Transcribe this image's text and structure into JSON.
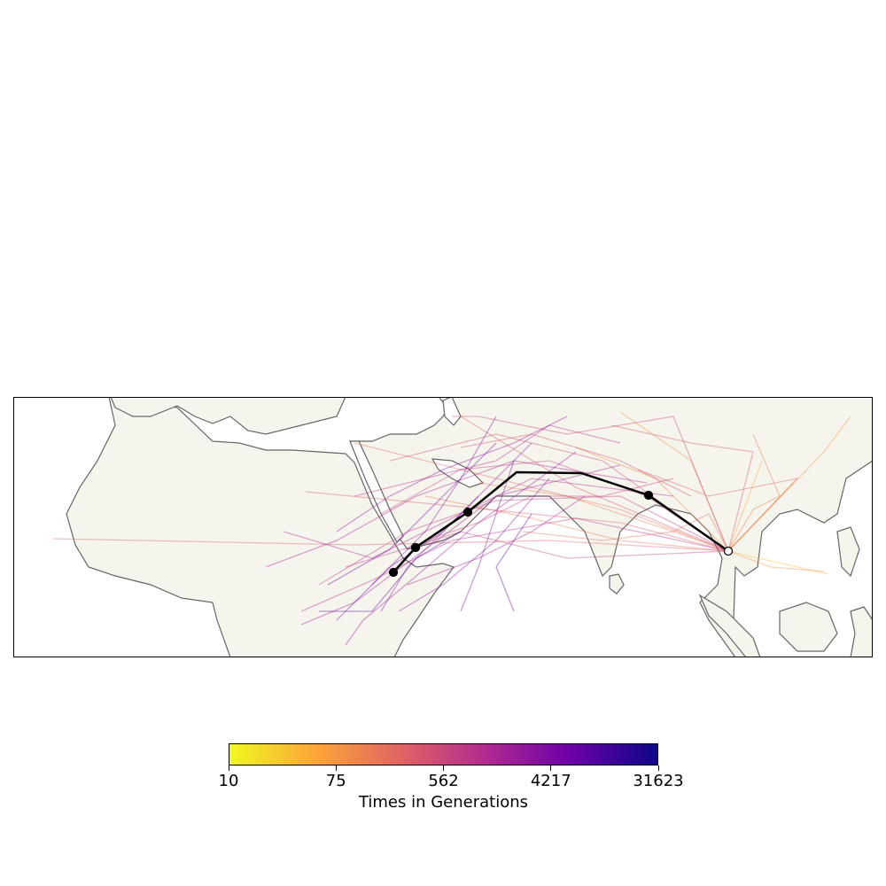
{
  "map": {
    "region": "Africa to Southeast Asia",
    "land_color": "#f5f5ed",
    "coast_color": "#666666",
    "lineage_colormap": "plasma",
    "lineages": [
      {
        "t": 0.15,
        "pts": [
          [
            822,
            622
          ],
          [
            935,
            648
          ]
        ]
      },
      {
        "t": 0.18,
        "pts": [
          [
            822,
            622
          ],
          [
            895,
            545
          ]
        ]
      },
      {
        "t": 0.22,
        "pts": [
          [
            822,
            622
          ],
          [
            860,
            520
          ]
        ]
      },
      {
        "t": 0.25,
        "pts": [
          [
            822,
            622
          ],
          [
            930,
            510
          ],
          [
            960,
            470
          ]
        ]
      },
      {
        "t": 0.28,
        "pts": [
          [
            822,
            622
          ],
          [
            780,
            520
          ],
          [
            700,
            465
          ]
        ]
      },
      {
        "t": 0.3,
        "pts": [
          [
            822,
            622
          ],
          [
            740,
            540
          ],
          [
            650,
            505
          ]
        ]
      },
      {
        "t": 0.32,
        "pts": [
          [
            822,
            622
          ],
          [
            760,
            600
          ],
          [
            640,
            560
          ],
          [
            540,
            545
          ]
        ]
      },
      {
        "t": 0.35,
        "pts": [
          [
            822,
            622
          ],
          [
            700,
            610
          ],
          [
            600,
            585
          ],
          [
            480,
            560
          ]
        ]
      },
      {
        "t": 0.38,
        "pts": [
          [
            822,
            622
          ],
          [
            700,
            575
          ],
          [
            560,
            540
          ],
          [
            400,
            500
          ]
        ]
      },
      {
        "t": 0.4,
        "pts": [
          [
            822,
            622
          ],
          [
            620,
            610
          ],
          [
            400,
            615
          ],
          [
            60,
            608
          ]
        ]
      },
      {
        "t": 0.42,
        "pts": [
          [
            822,
            622
          ],
          [
            700,
            590
          ],
          [
            500,
            570
          ],
          [
            345,
            555
          ]
        ]
      },
      {
        "t": 0.45,
        "pts": [
          [
            822,
            622
          ],
          [
            650,
            550
          ],
          [
            520,
            470
          ]
        ]
      },
      {
        "t": 0.48,
        "pts": [
          [
            822,
            622
          ],
          [
            680,
            520
          ],
          [
            560,
            490
          ],
          [
            440,
            520
          ]
        ]
      },
      {
        "t": 0.5,
        "pts": [
          [
            822,
            622
          ],
          [
            730,
            560
          ],
          [
            620,
            520
          ],
          [
            520,
            530
          ],
          [
            430,
            580
          ]
        ]
      },
      {
        "t": 0.52,
        "pts": [
          [
            822,
            622
          ],
          [
            640,
            630
          ],
          [
            520,
            600
          ],
          [
            390,
            640
          ]
        ]
      },
      {
        "t": 0.55,
        "pts": [
          [
            822,
            622
          ],
          [
            700,
            560
          ],
          [
            560,
            565
          ],
          [
            460,
            600
          ],
          [
            360,
            660
          ]
        ]
      },
      {
        "t": 0.57,
        "pts": [
          [
            822,
            622
          ],
          [
            650,
            585
          ],
          [
            510,
            610
          ],
          [
            420,
            655
          ],
          [
            340,
            690
          ]
        ]
      },
      {
        "t": 0.6,
        "pts": [
          [
            760,
            560
          ],
          [
            600,
            540
          ],
          [
            500,
            590
          ],
          [
            420,
            630
          ],
          [
            320,
            600
          ]
        ]
      },
      {
        "t": 0.62,
        "pts": [
          [
            730,
            545
          ],
          [
            580,
            520
          ],
          [
            470,
            560
          ],
          [
            380,
            610
          ],
          [
            300,
            640
          ]
        ]
      },
      {
        "t": 0.65,
        "pts": [
          [
            700,
            525
          ],
          [
            560,
            560
          ],
          [
            480,
            620
          ],
          [
            400,
            680
          ],
          [
            340,
            705
          ]
        ]
      },
      {
        "t": 0.67,
        "pts": [
          [
            650,
            510
          ],
          [
            540,
            590
          ],
          [
            470,
            650
          ],
          [
            410,
            700
          ],
          [
            390,
            728
          ]
        ]
      },
      {
        "t": 0.7,
        "pts": [
          [
            600,
            500
          ],
          [
            520,
            580
          ],
          [
            460,
            640
          ],
          [
            430,
            690
          ]
        ]
      },
      {
        "t": 0.72,
        "pts": [
          [
            620,
            540
          ],
          [
            560,
            610
          ],
          [
            500,
            660
          ],
          [
            450,
            690
          ]
        ]
      },
      {
        "t": 0.75,
        "pts": [
          [
            580,
            520
          ],
          [
            540,
            640
          ],
          [
            520,
            690
          ]
        ]
      },
      {
        "t": 0.77,
        "pts": [
          [
            560,
            500
          ],
          [
            500,
            560
          ],
          [
            440,
            620
          ],
          [
            370,
            660
          ]
        ]
      },
      {
        "t": 0.8,
        "pts": [
          [
            540,
            560
          ],
          [
            500,
            600
          ],
          [
            440,
            640
          ],
          [
            380,
            700
          ]
        ]
      },
      {
        "t": 0.82,
        "pts": [
          [
            600,
            580
          ],
          [
            560,
            640
          ],
          [
            580,
            690
          ]
        ]
      },
      {
        "t": 0.85,
        "pts": [
          [
            520,
            600
          ],
          [
            470,
            630
          ],
          [
            420,
            690
          ],
          [
            360,
            690
          ]
        ]
      },
      {
        "t": 0.5,
        "pts": [
          [
            822,
            622
          ],
          [
            760,
            470
          ],
          [
            640,
            490
          ],
          [
            540,
            470
          ],
          [
            510,
            470
          ]
        ]
      },
      {
        "t": 0.45,
        "pts": [
          [
            822,
            622
          ],
          [
            850,
            510
          ],
          [
            780,
            500
          ],
          [
            690,
            480
          ]
        ]
      },
      {
        "t": 0.4,
        "pts": [
          [
            822,
            622
          ],
          [
            900,
            540
          ],
          [
            800,
            560
          ],
          [
            720,
            530
          ]
        ]
      },
      {
        "t": 0.58,
        "pts": [
          [
            700,
            500
          ],
          [
            620,
            480
          ],
          [
            560,
            520
          ],
          [
            480,
            540
          ],
          [
            400,
            560
          ]
        ]
      },
      {
        "t": 0.63,
        "pts": [
          [
            660,
            560
          ],
          [
            600,
            600
          ],
          [
            540,
            630
          ],
          [
            460,
            660
          ]
        ]
      },
      {
        "t": 0.68,
        "pts": [
          [
            640,
            470
          ],
          [
            580,
            500
          ],
          [
            500,
            530
          ],
          [
            440,
            560
          ],
          [
            380,
            600
          ]
        ]
      },
      {
        "t": 0.73,
        "pts": [
          [
            560,
            470
          ],
          [
            520,
            540
          ],
          [
            480,
            600
          ],
          [
            420,
            660
          ]
        ]
      },
      {
        "t": 0.36,
        "pts": [
          [
            822,
            622
          ],
          [
            800,
            580
          ],
          [
            760,
            600
          ],
          [
            680,
            610
          ],
          [
            590,
            600
          ]
        ]
      },
      {
        "t": 0.33,
        "pts": [
          [
            822,
            622
          ],
          [
            850,
            575
          ],
          [
            880,
            560
          ],
          [
            850,
            490
          ]
        ]
      },
      {
        "t": 0.27,
        "pts": [
          [
            822,
            622
          ],
          [
            870,
            640
          ],
          [
            930,
            645
          ]
        ]
      },
      {
        "t": 0.47,
        "pts": [
          [
            780,
            560
          ],
          [
            700,
            520
          ],
          [
            600,
            490
          ],
          [
            520,
            505
          ]
        ]
      },
      {
        "t": 0.53,
        "pts": [
          [
            760,
            540
          ],
          [
            680,
            560
          ],
          [
            600,
            560
          ],
          [
            540,
            590
          ],
          [
            480,
            610
          ]
        ]
      }
    ],
    "main_path": [
      [
        444,
        646
      ],
      [
        469,
        618
      ],
      [
        528,
        578
      ],
      [
        583,
        533
      ],
      [
        656,
        534
      ],
      [
        732,
        559
      ],
      [
        822,
        622
      ]
    ],
    "nodes": [
      {
        "type": "internal",
        "pt": [
          444,
          646
        ]
      },
      {
        "type": "internal",
        "pt": [
          469,
          618
        ]
      },
      {
        "type": "internal",
        "pt": [
          528,
          578
        ]
      },
      {
        "type": "internal",
        "pt": [
          732,
          559
        ]
      },
      {
        "type": "sample",
        "pt": [
          822,
          622
        ]
      }
    ]
  },
  "colorbar": {
    "colormap": "plasma",
    "title": "Times in Generations",
    "ticks": [
      "10",
      "75",
      "562",
      "4217",
      "31623"
    ],
    "scale": "log",
    "range": [
      10,
      31623
    ]
  }
}
